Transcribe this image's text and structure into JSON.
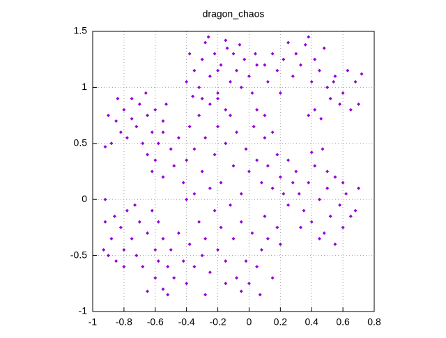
{
  "chart_data": {
    "type": "scatter",
    "title": "dragon_chaos",
    "color": "#9400d3",
    "grid": true,
    "xlim": [
      -1,
      0.8
    ],
    "ylim": [
      -1,
      1.5
    ],
    "xticks": [
      -1,
      -0.8,
      -0.6,
      -0.4,
      -0.2,
      0,
      0.2,
      0.4,
      0.6,
      0.8
    ],
    "yticks": [
      -1,
      -0.5,
      0,
      0.5,
      1,
      1.5
    ],
    "x": [
      -0.9,
      -0.85,
      -0.8,
      -0.75,
      -0.7,
      -0.65,
      -0.6,
      -0.55,
      -0.88,
      -0.82,
      -0.78,
      -0.72,
      -0.68,
      -0.62,
      -0.58,
      -0.92,
      -0.75,
      -0.66,
      -0.53,
      -0.84,
      -0.38,
      -0.35,
      -0.32,
      -0.3,
      -0.28,
      -0.25,
      -0.22,
      -0.2,
      -0.18,
      -0.15,
      -0.12,
      -0.1,
      -0.08,
      -0.05,
      -0.03,
      0.0,
      0.02,
      0.05,
      -0.4,
      -0.36,
      -0.26,
      -0.14,
      -0.06,
      0.04,
      -0.2,
      0.1,
      0.12,
      0.15,
      0.18,
      0.2,
      0.22,
      0.25,
      0.28,
      0.3,
      0.33,
      0.36,
      0.38,
      0.4,
      0.42,
      0.45,
      0.48,
      0.5,
      0.52,
      0.55,
      0.58,
      0.6,
      0.63,
      0.65,
      0.68,
      0.7,
      0.72,
      0.38,
      0.42,
      0.46,
      0.54,
      -0.55,
      -0.5,
      -0.45,
      -0.4,
      -0.38,
      -0.35,
      -0.32,
      -0.3,
      -0.28,
      -0.25,
      -0.22,
      -0.2,
      -0.18,
      -0.15,
      -0.12,
      -0.1,
      -0.08,
      -0.05,
      -0.02,
      0.0,
      0.03,
      0.05,
      0.08,
      0.1,
      0.12,
      0.15,
      0.18,
      0.2,
      0.22,
      0.25,
      0.28,
      -0.6,
      -0.62,
      -0.65,
      -0.55,
      -0.48,
      -0.42,
      -0.35,
      -0.3,
      -0.2,
      -0.15,
      0.05,
      0.1,
      0.15,
      -0.25,
      0.3,
      0.32,
      0.35,
      0.38,
      0.4,
      0.42,
      0.45,
      0.48,
      0.5,
      0.52,
      0.55,
      0.58,
      0.6,
      0.62,
      0.65,
      0.68,
      0.7,
      0.55,
      0.45,
      0.4,
      0.5,
      0.33,
      0.6,
      0.47,
      0.25,
      -0.92,
      -0.9,
      -0.88,
      -0.85,
      -0.82,
      -0.8,
      -0.78,
      -0.75,
      -0.72,
      -0.7,
      -0.68,
      -0.65,
      -0.62,
      -0.6,
      -0.58,
      -0.55,
      -0.73,
      -0.93,
      -0.86,
      -0.8,
      -0.6,
      -0.58,
      -0.55,
      -0.52,
      -0.5,
      -0.48,
      -0.45,
      -0.42,
      -0.4,
      -0.38,
      -0.35,
      -0.32,
      -0.3,
      -0.28,
      -0.25,
      -0.22,
      -0.2,
      -0.18,
      -0.15,
      -0.12,
      -0.1,
      -0.08,
      -0.05,
      -0.02,
      0.0,
      0.02,
      0.05,
      0.08,
      0.1,
      0.12,
      0.15,
      0.18,
      0.2,
      -0.65,
      -0.52,
      -0.15,
      -0.05,
      0.07,
      -0.4,
      -0.28,
      -0.92
    ],
    "values": [
      0.75,
      0.7,
      0.8,
      0.9,
      0.85,
      0.75,
      0.8,
      0.7,
      0.5,
      0.6,
      0.55,
      0.65,
      0.5,
      0.6,
      0.5,
      0.47,
      0.72,
      0.95,
      0.85,
      0.9,
      1.3,
      1.15,
      1.0,
      1.25,
      1.4,
      1.1,
      1.3,
      0.95,
      1.2,
      1.42,
      1.05,
      1.3,
      1.15,
      1.0,
      1.25,
      1.1,
      0.95,
      1.2,
      1.05,
      0.92,
      1.45,
      1.35,
      1.38,
      1.3,
      1.15,
      1.2,
      1.05,
      1.3,
      1.15,
      0.95,
      1.25,
      1.4,
      1.1,
      1.3,
      1.2,
      1.38,
      1.45,
      1.05,
      1.25,
      1.15,
      1.35,
      1.0,
      0.9,
      1.1,
      0.85,
      0.95,
      1.15,
      0.8,
      1.05,
      0.85,
      1.12,
      0.75,
      0.8,
      0.72,
      1.05,
      0.6,
      0.45,
      0.55,
      0.35,
      0.65,
      0.45,
      0.75,
      0.25,
      0.55,
      0.85,
      0.4,
      0.65,
      0.15,
      0.5,
      0.75,
      0.3,
      0.6,
      0.05,
      0.45,
      0.25,
      0.65,
      0.35,
      0.15,
      0.55,
      0.3,
      0.1,
      0.4,
      0.2,
      0.05,
      0.35,
      0.15,
      0.35,
      0.25,
      0.4,
      0.2,
      0.3,
      0.15,
      0.05,
      0.9,
      0.9,
      0.8,
      0.8,
      0.75,
      0.6,
      0.1,
      0.25,
      0.05,
      -0.1,
      0.15,
      -0.2,
      0.3,
      0.0,
      -0.3,
      0.1,
      -0.15,
      0.2,
      -0.05,
      -0.25,
      0.05,
      -0.15,
      -0.1,
      0.1,
      -0.4,
      -0.35,
      0.42,
      0.25,
      -0.25,
      0.15,
      0.45,
      -0.05,
      -0.2,
      -0.5,
      -0.35,
      -0.55,
      -0.25,
      -0.45,
      -0.1,
      -0.35,
      -0.5,
      -0.2,
      -0.6,
      -0.3,
      -0.1,
      -0.45,
      -0.2,
      -0.35,
      -0.05,
      -0.45,
      -0.15,
      -0.6,
      -0.7,
      -0.55,
      -0.8,
      -0.6,
      -0.45,
      -0.7,
      -0.3,
      -0.55,
      -0.75,
      -0.4,
      -0.6,
      -0.2,
      -0.5,
      -0.35,
      -0.65,
      -0.1,
      -0.45,
      -0.25,
      -0.55,
      -0.05,
      -0.35,
      -0.7,
      -0.2,
      -0.55,
      -0.75,
      -0.3,
      -0.6,
      -0.45,
      -0.15,
      -0.35,
      -0.7,
      -0.25,
      -0.4,
      -0.82,
      -0.85,
      -0.75,
      -0.82,
      -0.85,
      0.0,
      -0.85,
      0.0
    ]
  }
}
